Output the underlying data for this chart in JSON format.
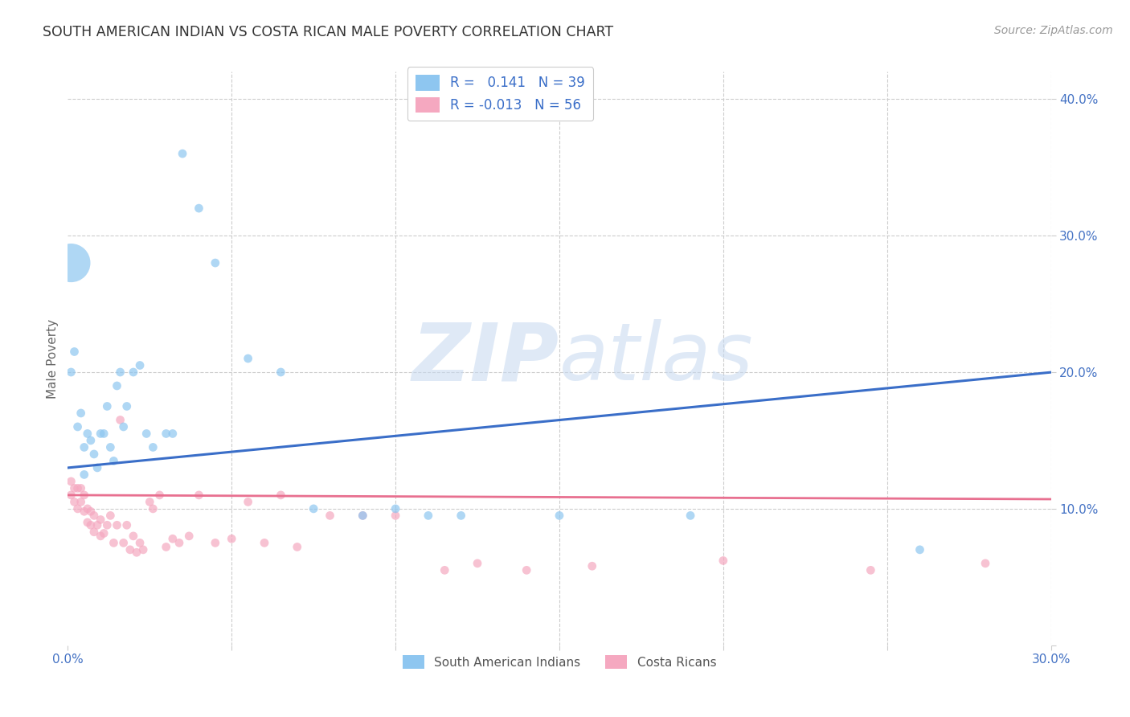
{
  "title": "SOUTH AMERICAN INDIAN VS COSTA RICAN MALE POVERTY CORRELATION CHART",
  "source": "Source: ZipAtlas.com",
  "ylabel": "Male Poverty",
  "xlim": [
    0.0,
    0.3
  ],
  "ylim": [
    0.0,
    0.42
  ],
  "grid_color": "#cccccc",
  "background_color": "#ffffff",
  "blue_color": "#8EC6F0",
  "pink_color": "#F5A8C0",
  "blue_line_color": "#3A6EC8",
  "pink_line_color": "#E87090",
  "legend_r_blue": "0.141",
  "legend_n_blue": "39",
  "legend_r_pink": "-0.013",
  "legend_n_pink": "56",
  "legend_label_blue": "South American Indians",
  "legend_label_pink": "Costa Ricans",
  "watermark_zip": "ZIP",
  "watermark_atlas": "atlas",
  "blue_trend_intercept": 0.13,
  "blue_trend_slope": 0.233,
  "pink_trend_intercept": 0.11,
  "pink_trend_slope": -0.01,
  "blue_scatter_x": [
    0.001,
    0.002,
    0.003,
    0.004,
    0.005,
    0.005,
    0.006,
    0.007,
    0.008,
    0.009,
    0.01,
    0.011,
    0.012,
    0.013,
    0.014,
    0.015,
    0.016,
    0.017,
    0.018,
    0.02,
    0.022,
    0.024,
    0.026,
    0.03,
    0.032,
    0.035,
    0.04,
    0.045,
    0.055,
    0.065,
    0.075,
    0.09,
    0.1,
    0.11,
    0.12,
    0.15,
    0.19,
    0.26,
    0.001
  ],
  "blue_scatter_y": [
    0.2,
    0.215,
    0.16,
    0.17,
    0.145,
    0.125,
    0.155,
    0.15,
    0.14,
    0.13,
    0.155,
    0.155,
    0.175,
    0.145,
    0.135,
    0.19,
    0.2,
    0.16,
    0.175,
    0.2,
    0.205,
    0.155,
    0.145,
    0.155,
    0.155,
    0.36,
    0.32,
    0.28,
    0.21,
    0.2,
    0.1,
    0.095,
    0.1,
    0.095,
    0.095,
    0.095,
    0.095,
    0.07,
    0.28
  ],
  "blue_scatter_sizes": [
    60,
    60,
    60,
    60,
    60,
    60,
    60,
    60,
    60,
    60,
    60,
    60,
    60,
    60,
    60,
    60,
    60,
    60,
    60,
    60,
    60,
    60,
    60,
    60,
    60,
    60,
    60,
    60,
    60,
    60,
    60,
    60,
    60,
    60,
    60,
    60,
    60,
    60,
    1200
  ],
  "pink_scatter_x": [
    0.001,
    0.001,
    0.002,
    0.002,
    0.003,
    0.003,
    0.004,
    0.004,
    0.005,
    0.005,
    0.006,
    0.006,
    0.007,
    0.007,
    0.008,
    0.008,
    0.009,
    0.01,
    0.01,
    0.011,
    0.012,
    0.013,
    0.014,
    0.015,
    0.016,
    0.017,
    0.018,
    0.019,
    0.02,
    0.021,
    0.022,
    0.023,
    0.025,
    0.026,
    0.028,
    0.03,
    0.032,
    0.034,
    0.037,
    0.04,
    0.045,
    0.05,
    0.055,
    0.06,
    0.065,
    0.07,
    0.08,
    0.09,
    0.1,
    0.115,
    0.125,
    0.14,
    0.16,
    0.2,
    0.245,
    0.28
  ],
  "pink_scatter_y": [
    0.12,
    0.11,
    0.115,
    0.105,
    0.115,
    0.1,
    0.115,
    0.105,
    0.11,
    0.098,
    0.1,
    0.09,
    0.098,
    0.088,
    0.095,
    0.083,
    0.088,
    0.08,
    0.092,
    0.082,
    0.088,
    0.095,
    0.075,
    0.088,
    0.165,
    0.075,
    0.088,
    0.07,
    0.08,
    0.068,
    0.075,
    0.07,
    0.105,
    0.1,
    0.11,
    0.072,
    0.078,
    0.075,
    0.08,
    0.11,
    0.075,
    0.078,
    0.105,
    0.075,
    0.11,
    0.072,
    0.095,
    0.095,
    0.095,
    0.055,
    0.06,
    0.055,
    0.058,
    0.062,
    0.055,
    0.06
  ],
  "pink_scatter_sizes": [
    60,
    60,
    60,
    60,
    60,
    60,
    60,
    60,
    60,
    60,
    60,
    60,
    60,
    60,
    60,
    60,
    60,
    60,
    60,
    60,
    60,
    60,
    60,
    60,
    60,
    60,
    60,
    60,
    60,
    60,
    60,
    60,
    60,
    60,
    60,
    60,
    60,
    60,
    60,
    60,
    60,
    60,
    60,
    60,
    60,
    60,
    60,
    60,
    60,
    60,
    60,
    60,
    60,
    60,
    60,
    60
  ]
}
